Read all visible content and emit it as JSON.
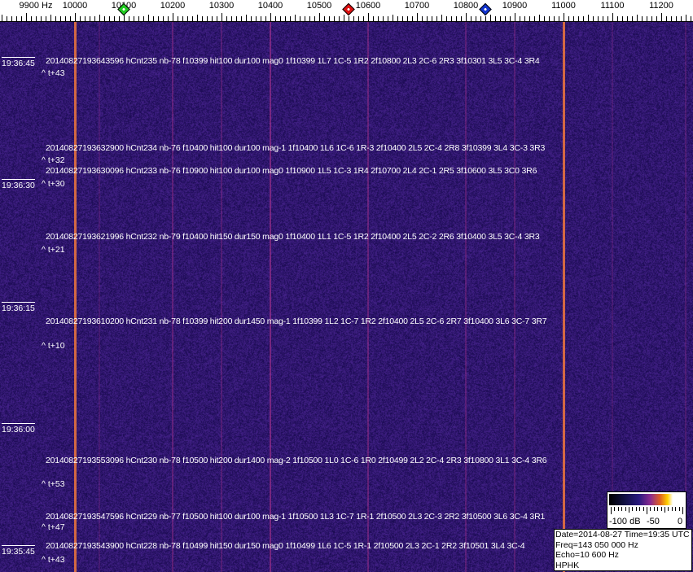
{
  "chart_data": {
    "type": "heatmap",
    "x_axis": {
      "unit": "Hz",
      "ticks": [
        9900,
        10000,
        10100,
        10200,
        10300,
        10400,
        10500,
        10600,
        10700,
        10800,
        10900,
        11000,
        11100,
        11200
      ],
      "first_label": "9900 Hz",
      "range": [
        9847,
        11265
      ]
    },
    "markers": [
      {
        "name": "green",
        "freq": 10100,
        "color": "#22cc22"
      },
      {
        "name": "red",
        "freq": 10560,
        "color": "#dd1111"
      },
      {
        "name": "blue",
        "freq": 10840,
        "color": "#1133cc"
      }
    ],
    "carrier_lines": [
      {
        "freq": 10000,
        "strength": 1.0
      },
      {
        "freq": 11000,
        "strength": 1.0
      },
      {
        "freq": 10400,
        "strength": 0.6
      },
      {
        "freq": 10200,
        "strength": 0.4
      },
      {
        "freq": 10600,
        "strength": 0.45
      },
      {
        "freq": 10300,
        "strength": 0.3
      },
      {
        "freq": 10800,
        "strength": 0.35
      },
      {
        "freq": 10900,
        "strength": 0.3
      },
      {
        "freq": 10050,
        "strength": 0.2
      },
      {
        "freq": 11100,
        "strength": 0.2
      },
      {
        "freq": 11250,
        "strength": 0.25
      }
    ],
    "time_labels": [
      "19:36:45",
      "19:36:30",
      "19:36:15",
      "19:36:00",
      "19:35:45"
    ],
    "detections": [
      {
        "text": "20140827193643596 hCnt235 nb-78 f10399 hit100 dur100 mag0 1f10399 1L7 1C-5 1R2 2f10800 2L3 2C-6 2R3 3f10301 3L5 3C-4 3R4",
        "tplus": "^ t+43"
      },
      {
        "text": "20140827193632900 hCnt234 nb-76 f10400 hit100 dur100 mag-1 1f10400 1L6 1C-6 1R-3 2f10400 2L5 2C-4 2R8 3f10399 3L4 3C-3 3R3",
        "tplus": "^ t+32"
      },
      {
        "text": "20140827193630096 hCnt233 nb-76 f10900 hit100 dur100 mag0 1f10900 1L5 1C-3 1R4 2f10700 2L4 2C-1 2R5 3f10600 3L5 3C0 3R6",
        "tplus": "^ t+30"
      },
      {
        "text": "20140827193621996 hCnt232 nb-79 f10400 hit150 dur150 mag0 1f10400 1L1 1C-5 1R2 2f10400 2L5 2C-2 2R6 3f10400 3L5 3C-4 3R3",
        "tplus": "^ t+21"
      },
      {
        "text": "20140827193610200 hCnt231 nb-78 f10399 hit200 dur1450 mag-1 1f10399 1L2 1C-7 1R2 2f10400 2L5 2C-6 2R7 3f10400 3L6 3C-7 3R7",
        "tplus": "^ t+10"
      },
      {
        "text": "20140827193553096 hCnt230 nb-78 f10500 hit200 dur1400 mag-2 1f10500 1L0 1C-6 1R0 2f10499 2L2 2C-4 2R3 3f10800 3L1 3C-4 3R6",
        "tplus": "^ t+53"
      },
      {
        "text": "20140827193547596 hCnt229 nb-77 f10500 hit100 dur100 mag-1 1f10500 1L3 1C-7 1R-1 2f10500 2L3 2C-3 2R2 3f10500 3L6 3C-4 3R1",
        "tplus": "^ t+47"
      },
      {
        "text": "20140827193543900 hCnt228 nb-78 f10499 hit150 dur150 mag0 1f10499 1L6 1C-5 1R-1 2f10500 2L3 2C-1 2R2 3f10501 3L4 3C-4",
        "tplus": "^ t+43"
      }
    ],
    "colorbar": {
      "range_db": [
        -100,
        0
      ],
      "labels": [
        "-100 dB",
        "-50",
        "0"
      ]
    }
  },
  "info": {
    "line1": "Date=2014-08-27 Time=19:35 UTC",
    "line2": "Freq=143 050 000 Hz",
    "line3": "Echo=10 600 Hz",
    "line4": "HPHK"
  }
}
